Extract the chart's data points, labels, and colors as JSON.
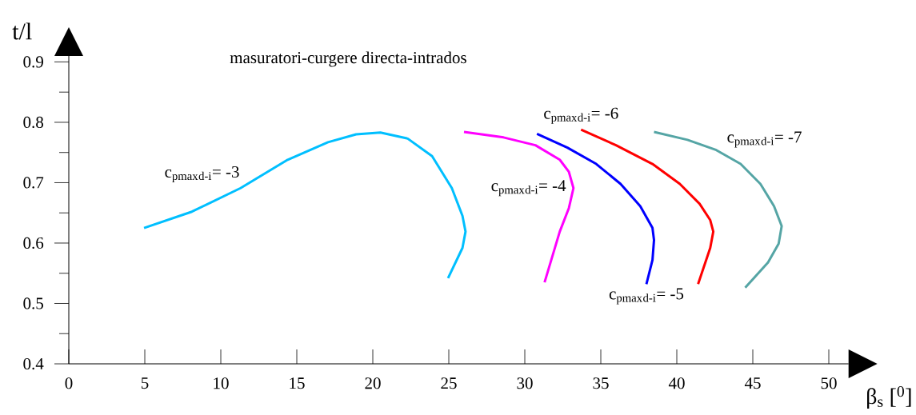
{
  "chart_data": {
    "type": "line",
    "title": "masuratori-curgere directa-intrados",
    "xlabel": "β$_{s}$ [$^{0}$]",
    "ylabel": "t/l",
    "xlim": [
      0,
      51.3
    ],
    "ylim": [
      0.4,
      0.91
    ],
    "xticks": [
      0,
      5,
      10,
      15,
      20,
      25,
      30,
      35,
      40,
      45,
      50
    ],
    "yticks": [
      0.4,
      {
        "value": 0.45,
        "label": null
      },
      0.5,
      {
        "value": 0.55,
        "label": null
      },
      0.6,
      {
        "value": 0.65,
        "label": null
      },
      0.7,
      {
        "value": 0.75,
        "label": null
      },
      0.8,
      {
        "value": 0.85,
        "label": null
      },
      0.9
    ],
    "grid": false,
    "marker": "none",
    "line_style": "solid",
    "series": [
      {
        "name": "c$_{pmax}$$_{d-i}$= -3",
        "color": "#00bfff",
        "x": [
          4.95,
          8.1,
          11.3,
          14.4,
          17.05,
          18.9,
          20.5,
          22.3,
          23.9,
          25.2,
          25.9,
          26.1,
          25.9,
          24.95
        ],
        "values": [
          0.625,
          0.652,
          0.691,
          0.738,
          0.767,
          0.78,
          0.783,
          0.773,
          0.744,
          0.691,
          0.645,
          0.619,
          0.592,
          0.542
        ]
      },
      {
        "name": "c$_{pmax}$$_{d-i}$= -4",
        "color": "#ff00ff",
        "x": [
          26.0,
          28.6,
          30.7,
          32.3,
          32.9,
          33.2,
          32.9,
          32.3,
          31.3
        ],
        "values": [
          0.784,
          0.775,
          0.762,
          0.738,
          0.718,
          0.691,
          0.658,
          0.619,
          0.535
        ]
      },
      {
        "name": "c$_{pmax}$$_{d-i}$= -5",
        "color": "#0000ff",
        "x": [
          30.8,
          32.8,
          34.7,
          36.3,
          37.6,
          38.4,
          38.5,
          38.4,
          38.0
        ],
        "values": [
          0.781,
          0.758,
          0.731,
          0.698,
          0.661,
          0.625,
          0.605,
          0.572,
          0.532
        ]
      },
      {
        "name": "c$_{pmax}$$_{d-i}$= -6",
        "color": "#ff0000",
        "x": [
          33.7,
          36.0,
          38.4,
          40.2,
          41.5,
          42.2,
          42.4,
          42.2,
          41.4
        ],
        "values": [
          0.788,
          0.762,
          0.731,
          0.698,
          0.665,
          0.638,
          0.619,
          0.592,
          0.532
        ]
      },
      {
        "name": "c$_{pmax}$$_{d-i}$= -7",
        "color": "#55a5a5",
        "x": [
          38.5,
          40.7,
          42.6,
          44.2,
          45.5,
          46.4,
          46.9,
          46.7,
          46.0,
          44.5
        ],
        "values": [
          0.784,
          0.771,
          0.754,
          0.731,
          0.698,
          0.661,
          0.628,
          0.599,
          0.568,
          0.526
        ]
      }
    ]
  }
}
